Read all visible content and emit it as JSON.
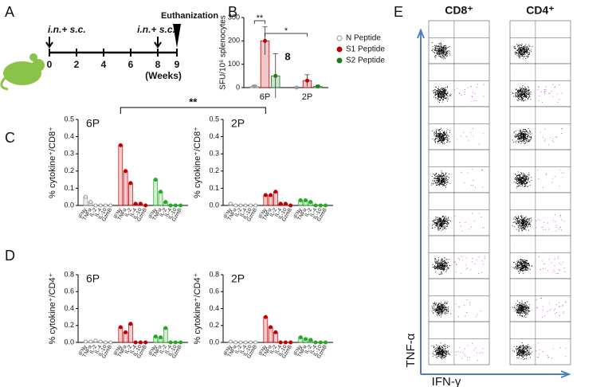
{
  "panels": [
    "A",
    "B",
    "C",
    "D",
    "E"
  ],
  "timeline": {
    "doses": [
      "i.n.+ s.c.",
      "i.n.+ s.c."
    ],
    "end": "Euthanization",
    "weeks": [
      "0",
      "2",
      "4",
      "6",
      "8",
      "9"
    ],
    "unit": "(Weeks)"
  },
  "chart_data": [
    {
      "type": "bar",
      "categories": [
        "6P",
        "2P"
      ],
      "ylabel": "SFU/10⁶ splenocytes",
      "ylim": [
        0,
        300
      ],
      "yticks": [
        0,
        100,
        200,
        300
      ],
      "series": [
        {
          "name": "N Peptide",
          "color": "#999999",
          "values": [
            5,
            0
          ],
          "errors": [
            5,
            2
          ]
        },
        {
          "name": "S1 Peptide",
          "color": "#c00000",
          "values": [
            200,
            30
          ],
          "errors": [
            60,
            25
          ]
        },
        {
          "name": "S2 Peptide",
          "color": "#1e7b1e",
          "values": [
            50,
            5
          ],
          "errors": [
            95,
            5
          ]
        }
      ],
      "annotations": [
        "**",
        "*",
        "8"
      ]
    },
    {
      "type": "bar_by_series",
      "title": "6P",
      "ylabel": "% cytokine⁺/CD8⁺",
      "categories": [
        "IFNγ",
        "TNFα",
        "IL-2",
        "IL-4",
        "IL-10",
        "GzmB"
      ],
      "ylim": [
        0,
        0.5
      ],
      "yticks": [
        {
          "value": 0,
          "label": "0.0"
        },
        0.1,
        0.2,
        0.3,
        0.4,
        0.5
      ],
      "series": [
        {
          "color": "#999999",
          "values": [
            0.05,
            0.02,
            0,
            0,
            0,
            0
          ]
        },
        {
          "color": "#c00000",
          "values": [
            0.35,
            0.2,
            0.13,
            0.01,
            0.01,
            0
          ]
        },
        {
          "color": "#22aa22",
          "values": [
            0.15,
            0.08,
            0.02,
            0,
            0,
            0
          ]
        }
      ]
    },
    {
      "type": "bar_by_series",
      "title": "2P",
      "ylabel": "% cytokine⁺/CD8⁺",
      "categories": [
        "IFNγ",
        "TNFα",
        "IL-2",
        "IL-4",
        "IL-10",
        "GzmB"
      ],
      "ylim": [
        0,
        0.5
      ],
      "yticks": [
        {
          "value": 0,
          "label": "0.0"
        },
        0.1,
        0.2,
        0.3,
        0.4,
        0.5
      ],
      "series": [
        {
          "color": "#999999",
          "values": [
            0.01,
            0,
            0,
            0,
            0,
            0
          ]
        },
        {
          "color": "#c00000",
          "values": [
            0.06,
            0.06,
            0.08,
            0.01,
            0.01,
            0
          ]
        },
        {
          "color": "#22aa22",
          "values": [
            0.03,
            0.03,
            0.02,
            0,
            0,
            0
          ]
        }
      ]
    },
    {
      "type": "bar_by_series",
      "title": "6P",
      "ylabel": "% cytokine⁺/CD4⁺",
      "categories": [
        "IFNγ",
        "TNFα",
        "IL-2",
        "IL-4",
        "IL-10",
        "GzmB"
      ],
      "ylim": [
        0,
        0.8
      ],
      "yticks": [
        {
          "value": 0,
          "label": "0.0"
        },
        0.2,
        0.4,
        0.6,
        0.8
      ],
      "series": [
        {
          "color": "#999999",
          "values": [
            0.01,
            0.01,
            0.02,
            0.01,
            0,
            0
          ]
        },
        {
          "color": "#c00000",
          "values": [
            0.18,
            0.12,
            0.22,
            0,
            0,
            0
          ]
        },
        {
          "color": "#22aa22",
          "values": [
            0.07,
            0.06,
            0.17,
            0,
            0,
            0
          ]
        }
      ]
    },
    {
      "type": "bar_by_series",
      "title": "2P",
      "ylabel": "% cytokine⁺/CD4⁺",
      "categories": [
        "IFNγ",
        "TNFα",
        "IL-2",
        "IL-4",
        "IL-10",
        "GzmB"
      ],
      "ylim": [
        0,
        0.8
      ],
      "yticks": [
        {
          "value": 0,
          "label": "0.0"
        },
        0.2,
        0.4,
        0.6,
        0.8
      ],
      "series": [
        {
          "color": "#999999",
          "values": [
            0.01,
            0,
            0,
            0,
            0,
            0
          ]
        },
        {
          "color": "#c00000",
          "values": [
            0.3,
            0.18,
            0.12,
            0,
            0,
            0
          ]
        },
        {
          "color": "#22aa22",
          "values": [
            0.06,
            0.04,
            0.03,
            0,
            0,
            0
          ]
        }
      ]
    }
  ],
  "significance": "**",
  "flow": {
    "columns": [
      "CD8⁺",
      "CD4⁺"
    ],
    "y_label": "TNF-α",
    "x_label": "IFN-γ"
  }
}
